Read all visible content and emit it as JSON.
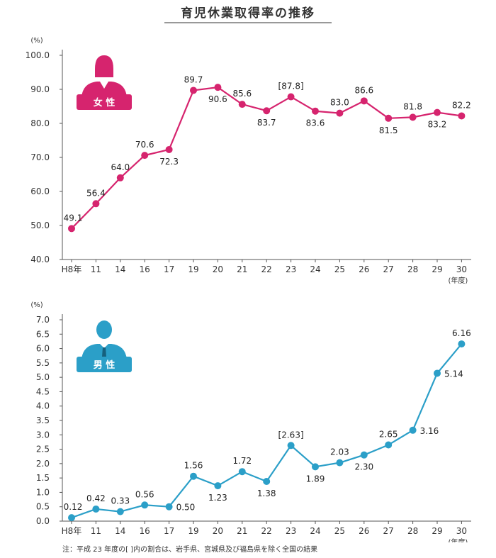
{
  "title": "育児休業取得率の推移",
  "note": "注：平成 23 年度の[ ]内の割合は、岩手県、宮城県及び福島県を除く全国の結果",
  "chart_data": [
    {
      "type": "line",
      "name": "female",
      "badge": "女 性",
      "color": "#d6246e",
      "y_unit": "(%)",
      "x_unit": "(年度)",
      "categories": [
        "H8年",
        "11",
        "14",
        "16",
        "17",
        "19",
        "20",
        "21",
        "22",
        "23",
        "24",
        "25",
        "26",
        "27",
        "28",
        "29",
        "30"
      ],
      "values": [
        49.1,
        56.4,
        64.0,
        70.6,
        72.3,
        89.7,
        90.6,
        85.6,
        83.7,
        87.8,
        83.6,
        83.0,
        86.6,
        81.5,
        81.8,
        83.2,
        82.2
      ],
      "labels": [
        "49.1",
        "56.4",
        "64.0",
        "70.6",
        "72.3",
        "89.7",
        "90.6",
        "85.6",
        "83.7",
        "[87.8]",
        "83.6",
        "83.0",
        "86.6",
        "81.5",
        "81.8",
        "83.2",
        "82.2"
      ],
      "label_pos": [
        "above",
        "above",
        "above",
        "above",
        "below",
        "above",
        "below",
        "above",
        "below",
        "above",
        "below",
        "above",
        "above",
        "below",
        "above",
        "below",
        "above"
      ],
      "ylim": [
        40.0,
        100.0
      ],
      "yticks": [
        "40.0",
        "50.0",
        "60.0",
        "70.0",
        "80.0",
        "90.0",
        "100.0"
      ]
    },
    {
      "type": "line",
      "name": "male",
      "badge": "男 性",
      "color": "#2b9fc8",
      "y_unit": "(%)",
      "x_unit": "(年度)",
      "categories": [
        "H8年",
        "11",
        "14",
        "16",
        "17",
        "19",
        "20",
        "21",
        "22",
        "23",
        "24",
        "25",
        "26",
        "27",
        "28",
        "29",
        "30"
      ],
      "values": [
        0.12,
        0.42,
        0.33,
        0.56,
        0.5,
        1.56,
        1.23,
        1.72,
        1.38,
        2.63,
        1.89,
        2.03,
        2.3,
        2.65,
        3.16,
        5.14,
        6.16
      ],
      "labels": [
        "0.12",
        "0.42",
        "0.33",
        "0.56",
        "0.50",
        "1.56",
        "1.23",
        "1.72",
        "1.38",
        "[2.63]",
        "1.89",
        "2.03",
        "2.30",
        "2.65",
        "3.16",
        "5.14",
        "6.16"
      ],
      "label_pos": [
        "above",
        "above",
        "above",
        "above",
        "right",
        "above",
        "below",
        "above",
        "below",
        "above",
        "below",
        "above",
        "below",
        "above",
        "right",
        "right",
        "above"
      ],
      "ylim": [
        0.0,
        7.0
      ],
      "yticks": [
        "0.0",
        "0.5",
        "1.0",
        "1.5",
        "2.0",
        "2.5",
        "3.0",
        "3.5",
        "4.0",
        "4.5",
        "5.0",
        "5.5",
        "6.0",
        "6.5",
        "7.0"
      ]
    }
  ]
}
